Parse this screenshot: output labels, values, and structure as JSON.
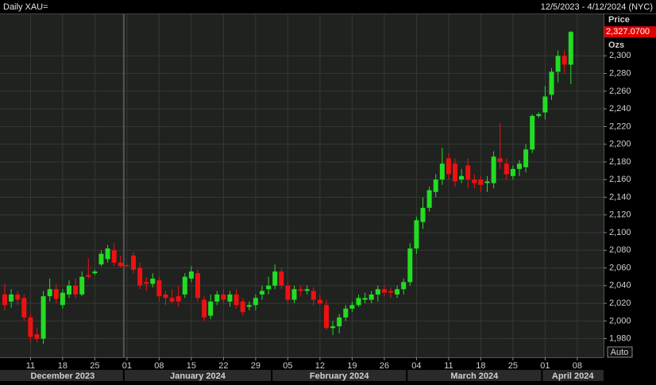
{
  "chart_data": {
    "type": "candlestick",
    "title": "Daily XAU=",
    "date_range": "12/5/2023 - 4/12/2024 (NYC)",
    "y_label": "Price",
    "y_unit": "Ozs",
    "grid": true,
    "up_color": "#22dd22",
    "down_color": "#ee1111",
    "ylim": [
      1959,
      2347
    ],
    "yticks": [
      {
        "value": 1980,
        "label": "1,980"
      },
      {
        "value": 2000,
        "label": "2,000"
      },
      {
        "value": 2020,
        "label": "2,020"
      },
      {
        "value": 2040,
        "label": "2,040"
      },
      {
        "value": 2060,
        "label": "2,060"
      },
      {
        "value": 2080,
        "label": "2,080"
      },
      {
        "value": 2100,
        "label": "2,100"
      },
      {
        "value": 2120,
        "label": "2,120"
      },
      {
        "value": 2140,
        "label": "2,140"
      },
      {
        "value": 2160,
        "label": "2,160"
      },
      {
        "value": 2180,
        "label": "2,180"
      },
      {
        "value": 2200,
        "label": "2,200"
      },
      {
        "value": 2220,
        "label": "2,220"
      },
      {
        "value": 2240,
        "label": "2,240"
      },
      {
        "value": 2260,
        "label": "2,260"
      },
      {
        "value": 2280,
        "label": "2,280"
      },
      {
        "value": 2300,
        "label": "2,300"
      }
    ],
    "last_price": {
      "value": 2327.07,
      "label": "2,327.0700"
    },
    "x": [
      "2023-12-05",
      "2023-12-06",
      "2023-12-07",
      "2023-12-08",
      "2023-12-11",
      "2023-12-12",
      "2023-12-13",
      "2023-12-14",
      "2023-12-15",
      "2023-12-18",
      "2023-12-19",
      "2023-12-20",
      "2023-12-21",
      "2023-12-22",
      "2023-12-25",
      "2023-12-26",
      "2023-12-27",
      "2023-12-28",
      "2023-12-29",
      "2024-01-01",
      "2024-01-02",
      "2024-01-03",
      "2024-01-04",
      "2024-01-05",
      "2024-01-08",
      "2024-01-09",
      "2024-01-10",
      "2024-01-11",
      "2024-01-12",
      "2024-01-15",
      "2024-01-16",
      "2024-01-17",
      "2024-01-18",
      "2024-01-19",
      "2024-01-22",
      "2024-01-23",
      "2024-01-24",
      "2024-01-25",
      "2024-01-26",
      "2024-01-29",
      "2024-01-30",
      "2024-01-31",
      "2024-02-01",
      "2024-02-02",
      "2024-02-05",
      "2024-02-06",
      "2024-02-07",
      "2024-02-08",
      "2024-02-09",
      "2024-02-12",
      "2024-02-13",
      "2024-02-14",
      "2024-02-15",
      "2024-02-16",
      "2024-02-19",
      "2024-02-20",
      "2024-02-21",
      "2024-02-22",
      "2024-02-23",
      "2024-02-26",
      "2024-02-27",
      "2024-02-28",
      "2024-02-29",
      "2024-03-01",
      "2024-03-04",
      "2024-03-05",
      "2024-03-06",
      "2024-03-07",
      "2024-03-08",
      "2024-03-11",
      "2024-03-12",
      "2024-03-13",
      "2024-03-14",
      "2024-03-15",
      "2024-03-18",
      "2024-03-19",
      "2024-03-20",
      "2024-03-21",
      "2024-03-22",
      "2024-03-25",
      "2024-03-26",
      "2024-03-27",
      "2024-03-28",
      "2024-03-29",
      "2024-04-01",
      "2024-04-02",
      "2024-04-03",
      "2024-04-04",
      "2024-04-05"
    ],
    "open": [
      2030,
      2022,
      2030,
      2026,
      2004,
      1985,
      1980,
      2028,
      2036,
      2018,
      2030,
      2040,
      2030,
      2052,
      2054,
      2064,
      2070,
      2080,
      2066,
      2063,
      2074,
      2060,
      2044,
      2042,
      2046,
      2030,
      2026,
      2028,
      2030,
      2048,
      2054,
      2024,
      2006,
      2022,
      2030,
      2022,
      2030,
      2022,
      2016,
      2018,
      2030,
      2036,
      2040,
      2056,
      2040,
      2024,
      2036,
      2034,
      2034,
      2024,
      2018,
      1992,
      1994,
      2004,
      2014,
      2018,
      2024,
      2024,
      2030,
      2036,
      2034,
      2030,
      2036,
      2044,
      2082,
      2112,
      2128,
      2146,
      2160,
      2184,
      2178,
      2160,
      2176,
      2160,
      2160,
      2156,
      2156,
      2184,
      2178,
      2164,
      2172,
      2174,
      2194,
      2232,
      2236,
      2256,
      2282,
      2300,
      2290
    ],
    "high": [
      2042,
      2036,
      2034,
      2030,
      2008,
      1992,
      2034,
      2048,
      2042,
      2036,
      2046,
      2048,
      2056,
      2071,
      2058,
      2080,
      2086,
      2088,
      2074,
      2064,
      2078,
      2066,
      2050,
      2054,
      2050,
      2034,
      2036,
      2040,
      2054,
      2062,
      2058,
      2028,
      2030,
      2034,
      2036,
      2034,
      2036,
      2026,
      2022,
      2030,
      2040,
      2050,
      2064,
      2060,
      2044,
      2040,
      2040,
      2040,
      2038,
      2030,
      2024,
      2000,
      2008,
      2018,
      2022,
      2030,
      2032,
      2034,
      2040,
      2040,
      2038,
      2040,
      2048,
      2088,
      2118,
      2140,
      2152,
      2166,
      2196,
      2190,
      2184,
      2172,
      2184,
      2166,
      2164,
      2164,
      2192,
      2224,
      2184,
      2176,
      2182,
      2200,
      2234,
      2236,
      2266,
      2286,
      2306,
      2306,
      2328
    ],
    "low": [
      2012,
      2015,
      2018,
      2000,
      1976,
      1976,
      1974,
      2022,
      2020,
      2014,
      2026,
      2026,
      2028,
      2048,
      2052,
      2062,
      2066,
      2062,
      2060,
      2061,
      2054,
      2036,
      2034,
      2038,
      2022,
      2018,
      2020,
      2016,
      2026,
      2044,
      2022,
      2000,
      2002,
      2018,
      2020,
      2016,
      2014,
      2006,
      2012,
      2012,
      2024,
      2030,
      2036,
      2036,
      2020,
      2020,
      2028,
      2030,
      2018,
      2018,
      1990,
      1984,
      1986,
      2000,
      2010,
      2016,
      2020,
      2020,
      2022,
      2028,
      2026,
      2026,
      2030,
      2040,
      2076,
      2104,
      2124,
      2140,
      2154,
      2160,
      2152,
      2156,
      2150,
      2150,
      2146,
      2146,
      2150,
      2172,
      2160,
      2160,
      2164,
      2168,
      2190,
      2230,
      2228,
      2250,
      2270,
      2280,
      2268
    ],
    "close": [
      2018,
      2030,
      2024,
      2004,
      1982,
      1980,
      2028,
      2036,
      2025,
      2032,
      2040,
      2030,
      2050,
      2050,
      2056,
      2076,
      2082,
      2066,
      2062,
      2062,
      2058,
      2040,
      2042,
      2048,
      2028,
      2026,
      2022,
      2022,
      2050,
      2056,
      2026,
      2004,
      2022,
      2030,
      2024,
      2030,
      2018,
      2010,
      2018,
      2026,
      2034,
      2040,
      2056,
      2040,
      2024,
      2036,
      2034,
      2036,
      2024,
      2020,
      1992,
      1994,
      2004,
      2014,
      2018,
      2026,
      2026,
      2030,
      2036,
      2032,
      2032,
      2036,
      2044,
      2082,
      2114,
      2128,
      2148,
      2160,
      2178,
      2166,
      2158,
      2164,
      2160,
      2156,
      2154,
      2158,
      2186,
      2180,
      2166,
      2172,
      2178,
      2194,
      2232,
      2234,
      2254,
      2282,
      2300,
      2290,
      2327.07
    ],
    "xticks": [
      {
        "value": "2023-12-11",
        "label": "11"
      },
      {
        "value": "2023-12-18",
        "label": "18"
      },
      {
        "value": "2023-12-25",
        "label": "25"
      },
      {
        "value": "2024-01-01",
        "label": "01"
      },
      {
        "value": "2024-01-08",
        "label": "08"
      },
      {
        "value": "2024-01-15",
        "label": "15"
      },
      {
        "value": "2024-01-22",
        "label": "22"
      },
      {
        "value": "2024-01-29",
        "label": "29"
      },
      {
        "value": "2024-02-05",
        "label": "05"
      },
      {
        "value": "2024-02-12",
        "label": "12"
      },
      {
        "value": "2024-02-19",
        "label": "19"
      },
      {
        "value": "2024-02-26",
        "label": "26"
      },
      {
        "value": "2024-03-04",
        "label": "04"
      },
      {
        "value": "2024-03-11",
        "label": "11"
      },
      {
        "value": "2024-03-18",
        "label": "18"
      },
      {
        "value": "2024-03-25",
        "label": "25"
      },
      {
        "value": "2024-04-01",
        "label": "01"
      },
      {
        "value": "2024-04-08",
        "label": "08"
      }
    ],
    "months": [
      {
        "value": "2023-12",
        "label": "December 2023"
      },
      {
        "value": "2024-01",
        "label": "January 2024"
      },
      {
        "value": "2024-02",
        "label": "February 2024"
      },
      {
        "value": "2024-03",
        "label": "March 2024"
      },
      {
        "value": "2024-04",
        "label": "April 2024"
      }
    ]
  },
  "auto_button": "Auto"
}
